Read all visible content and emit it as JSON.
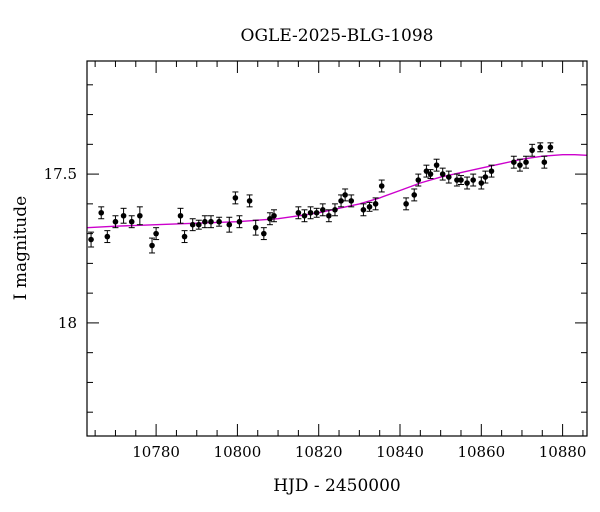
{
  "chart_data": {
    "type": "scatter",
    "title": "OGLE-2025-BLG-1098",
    "xlabel": "HJD - 2450000",
    "ylabel": "I magnitude",
    "xlim": [
      10763,
      10886
    ],
    "ylim": [
      18.38,
      17.12
    ],
    "y_inverted": true,
    "xticks": [
      10780,
      10800,
      10820,
      10840,
      10860,
      10880
    ],
    "yticks": [
      17.5,
      18
    ],
    "grid": false,
    "colors": {
      "points": "#000000",
      "model": "#cc00cc"
    },
    "series": [
      {
        "style": "points-with-errorbars",
        "points": [
          {
            "x": 10764.0,
            "y": 17.72,
            "e": 0.025
          },
          {
            "x": 10766.5,
            "y": 17.63,
            "e": 0.02
          },
          {
            "x": 10768.0,
            "y": 17.71,
            "e": 0.02
          },
          {
            "x": 10770.0,
            "y": 17.66,
            "e": 0.02
          },
          {
            "x": 10772.0,
            "y": 17.64,
            "e": 0.025
          },
          {
            "x": 10774.0,
            "y": 17.66,
            "e": 0.02
          },
          {
            "x": 10776.0,
            "y": 17.64,
            "e": 0.03
          },
          {
            "x": 10779.0,
            "y": 17.74,
            "e": 0.025
          },
          {
            "x": 10780.0,
            "y": 17.7,
            "e": 0.02
          },
          {
            "x": 10786.0,
            "y": 17.64,
            "e": 0.025
          },
          {
            "x": 10787.0,
            "y": 17.71,
            "e": 0.02
          },
          {
            "x": 10789.0,
            "y": 17.67,
            "e": 0.02
          },
          {
            "x": 10790.5,
            "y": 17.67,
            "e": 0.015
          },
          {
            "x": 10792.0,
            "y": 17.66,
            "e": 0.02
          },
          {
            "x": 10793.5,
            "y": 17.66,
            "e": 0.02
          },
          {
            "x": 10795.5,
            "y": 17.66,
            "e": 0.015
          },
          {
            "x": 10798.0,
            "y": 17.67,
            "e": 0.025
          },
          {
            "x": 10799.5,
            "y": 17.58,
            "e": 0.02
          },
          {
            "x": 10800.5,
            "y": 17.66,
            "e": 0.02
          },
          {
            "x": 10803.0,
            "y": 17.59,
            "e": 0.02
          },
          {
            "x": 10804.5,
            "y": 17.68,
            "e": 0.025
          },
          {
            "x": 10806.5,
            "y": 17.7,
            "e": 0.02
          },
          {
            "x": 10808.0,
            "y": 17.65,
            "e": 0.02
          },
          {
            "x": 10809.0,
            "y": 17.64,
            "e": 0.02
          },
          {
            "x": 10815.0,
            "y": 17.63,
            "e": 0.02
          },
          {
            "x": 10816.5,
            "y": 17.64,
            "e": 0.02
          },
          {
            "x": 10818.0,
            "y": 17.63,
            "e": 0.02
          },
          {
            "x": 10819.5,
            "y": 17.63,
            "e": 0.015
          },
          {
            "x": 10821.0,
            "y": 17.62,
            "e": 0.02
          },
          {
            "x": 10822.5,
            "y": 17.64,
            "e": 0.02
          },
          {
            "x": 10824.0,
            "y": 17.62,
            "e": 0.02
          },
          {
            "x": 10825.5,
            "y": 17.59,
            "e": 0.02
          },
          {
            "x": 10826.5,
            "y": 17.57,
            "e": 0.02
          },
          {
            "x": 10828.0,
            "y": 17.59,
            "e": 0.02
          },
          {
            "x": 10831.0,
            "y": 17.62,
            "e": 0.02
          },
          {
            "x": 10832.5,
            "y": 17.61,
            "e": 0.015
          },
          {
            "x": 10834.0,
            "y": 17.6,
            "e": 0.02
          },
          {
            "x": 10835.5,
            "y": 17.54,
            "e": 0.02
          },
          {
            "x": 10841.5,
            "y": 17.6,
            "e": 0.02
          },
          {
            "x": 10843.5,
            "y": 17.57,
            "e": 0.02
          },
          {
            "x": 10844.5,
            "y": 17.52,
            "e": 0.02
          },
          {
            "x": 10846.5,
            "y": 17.49,
            "e": 0.02
          },
          {
            "x": 10847.5,
            "y": 17.5,
            "e": 0.015
          },
          {
            "x": 10849.0,
            "y": 17.47,
            "e": 0.02
          },
          {
            "x": 10850.5,
            "y": 17.5,
            "e": 0.02
          },
          {
            "x": 10852.0,
            "y": 17.51,
            "e": 0.02
          },
          {
            "x": 10854.0,
            "y": 17.52,
            "e": 0.02
          },
          {
            "x": 10855.0,
            "y": 17.52,
            "e": 0.015
          },
          {
            "x": 10856.5,
            "y": 17.53,
            "e": 0.02
          },
          {
            "x": 10858.0,
            "y": 17.52,
            "e": 0.02
          },
          {
            "x": 10860.0,
            "y": 17.53,
            "e": 0.02
          },
          {
            "x": 10861.0,
            "y": 17.51,
            "e": 0.02
          },
          {
            "x": 10862.5,
            "y": 17.49,
            "e": 0.02
          },
          {
            "x": 10868.0,
            "y": 17.46,
            "e": 0.02
          },
          {
            "x": 10869.5,
            "y": 17.47,
            "e": 0.02
          },
          {
            "x": 10871.0,
            "y": 17.46,
            "e": 0.02
          },
          {
            "x": 10872.5,
            "y": 17.42,
            "e": 0.02
          },
          {
            "x": 10874.5,
            "y": 17.41,
            "e": 0.015
          },
          {
            "x": 10875.5,
            "y": 17.46,
            "e": 0.02
          },
          {
            "x": 10877.0,
            "y": 17.41,
            "e": 0.015
          }
        ]
      },
      {
        "style": "line",
        "x": [
          10763,
          10770,
          10780,
          10790,
          10800,
          10810,
          10815,
          10820,
          10825,
          10830,
          10835,
          10840,
          10845,
          10850,
          10855,
          10860,
          10865,
          10870,
          10875,
          10880,
          10883,
          10886
        ],
        "y": [
          17.68,
          17.675,
          17.67,
          17.665,
          17.66,
          17.65,
          17.64,
          17.63,
          17.615,
          17.6,
          17.58,
          17.555,
          17.53,
          17.51,
          17.495,
          17.48,
          17.465,
          17.45,
          17.44,
          17.435,
          17.435,
          17.437
        ]
      }
    ]
  }
}
